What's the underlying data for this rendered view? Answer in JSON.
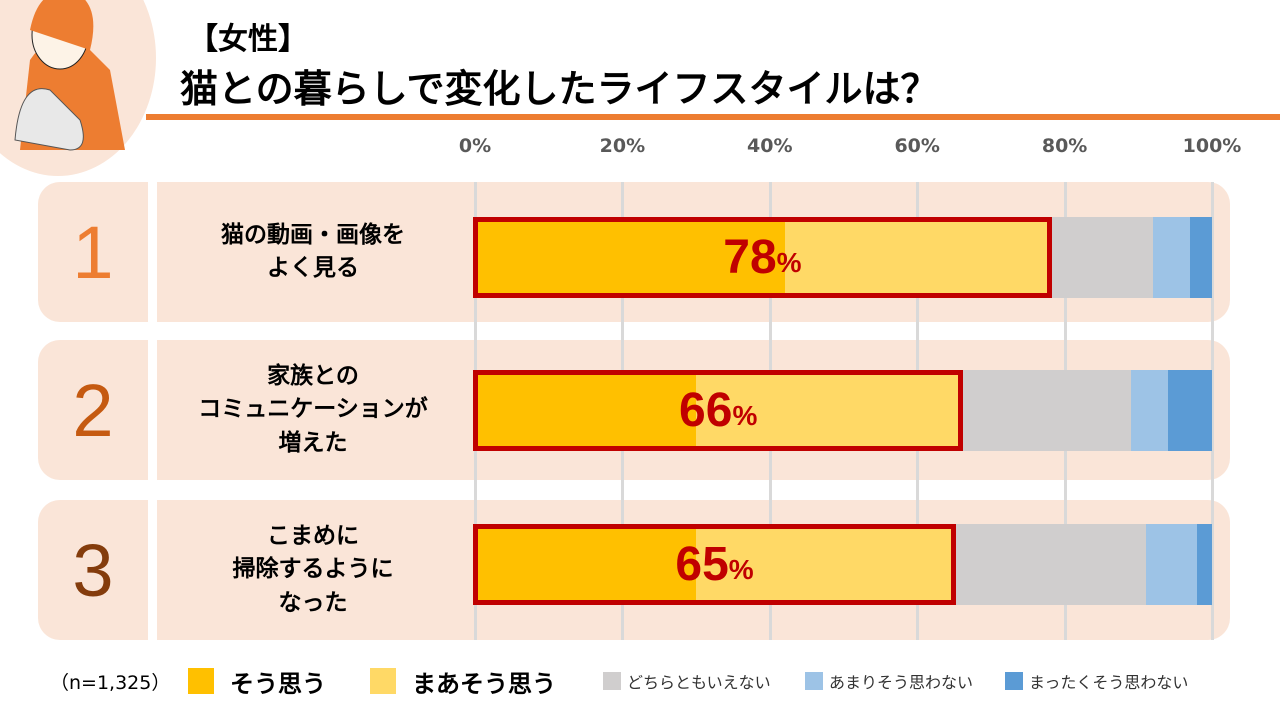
{
  "header": {
    "tag": "【女性】",
    "title": "猫との暮らしで変化したライフスタイルは？"
  },
  "chart_data": {
    "type": "bar",
    "orientation": "horizontal-stacked-100",
    "xlim": [
      0,
      100
    ],
    "tick_labels": [
      "0%",
      "20%",
      "40%",
      "60%",
      "80%",
      "100%"
    ],
    "ticks": [
      0,
      20,
      40,
      60,
      80,
      100
    ],
    "grid": true,
    "legend_position": "bottom",
    "sample": "（n=1,325）",
    "categories": [
      {
        "rank": "1",
        "label": "猫の動画・画像を\nよく見る",
        "highlight": "78",
        "unit": "%"
      },
      {
        "rank": "2",
        "label": "家族との\nコミュニケーションが\n増えた",
        "highlight": "66",
        "unit": "%"
      },
      {
        "rank": "3",
        "label": "こまめに\n掃除するように\nなった",
        "highlight": "65",
        "unit": "%"
      }
    ],
    "series": [
      {
        "name": "そう思う",
        "color": "#ffc000",
        "values": [
          42,
          30,
          30
        ]
      },
      {
        "name": "まあそう思う",
        "color": "#ffd966",
        "values": [
          36,
          36,
          35
        ]
      },
      {
        "name": "どちらともいえない",
        "color": "#d0cece",
        "values": [
          14,
          23,
          26
        ]
      },
      {
        "name": "あまりそう思わない",
        "color": "#9dc3e6",
        "values": [
          5,
          5,
          7
        ]
      },
      {
        "name": "まったくそう思わない",
        "color": "#5b9bd5",
        "values": [
          3,
          6,
          2
        ]
      }
    ],
    "rank_colors": [
      "#ed7d31",
      "#c55a11",
      "#843c0c"
    ],
    "highlight_color": "#c00000"
  }
}
